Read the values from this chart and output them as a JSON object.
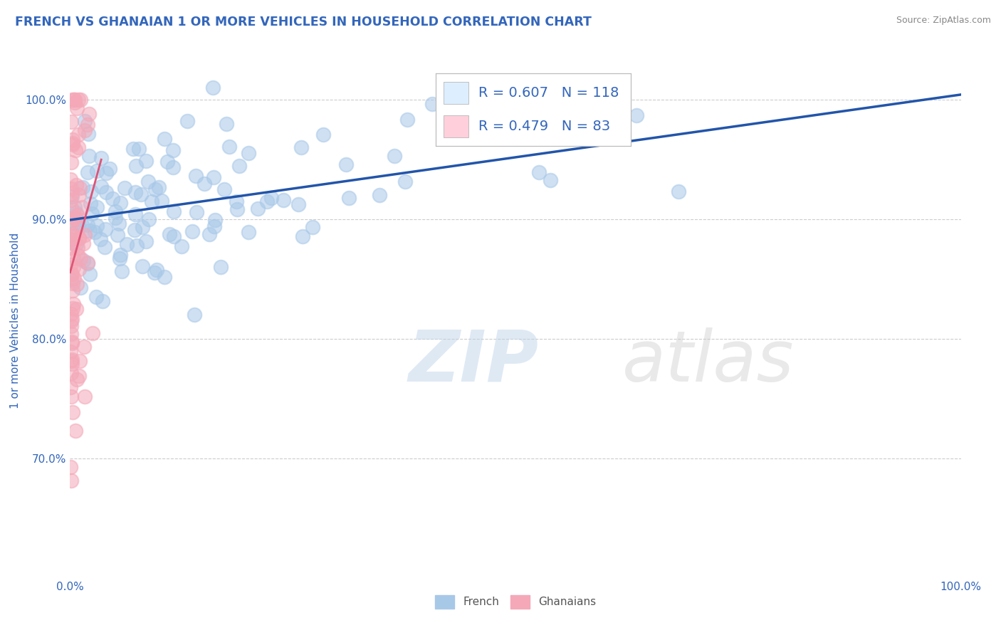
{
  "title": "FRENCH VS GHANAIAN 1 OR MORE VEHICLES IN HOUSEHOLD CORRELATION CHART",
  "source": "Source: ZipAtlas.com",
  "ylabel": "1 or more Vehicles in Household",
  "xlim": [
    0,
    100
  ],
  "ylim": [
    60,
    103
  ],
  "french_R": 0.607,
  "french_N": 118,
  "ghanaian_R": 0.479,
  "ghanaian_N": 83,
  "french_color": "#a8c8e8",
  "ghanaian_color": "#f4a8b8",
  "french_line_color": "#2255aa",
  "ghanaian_line_color": "#dd5577",
  "background_color": "#ffffff",
  "grid_color": "#cccccc",
  "title_color": "#3366bb",
  "title_fontsize": 12.5,
  "axis_label_color": "#3366bb",
  "tick_label_color": "#3366bb",
  "legend_box_color": "#ddeeff",
  "legend_box_color2": "#ffd0dc"
}
